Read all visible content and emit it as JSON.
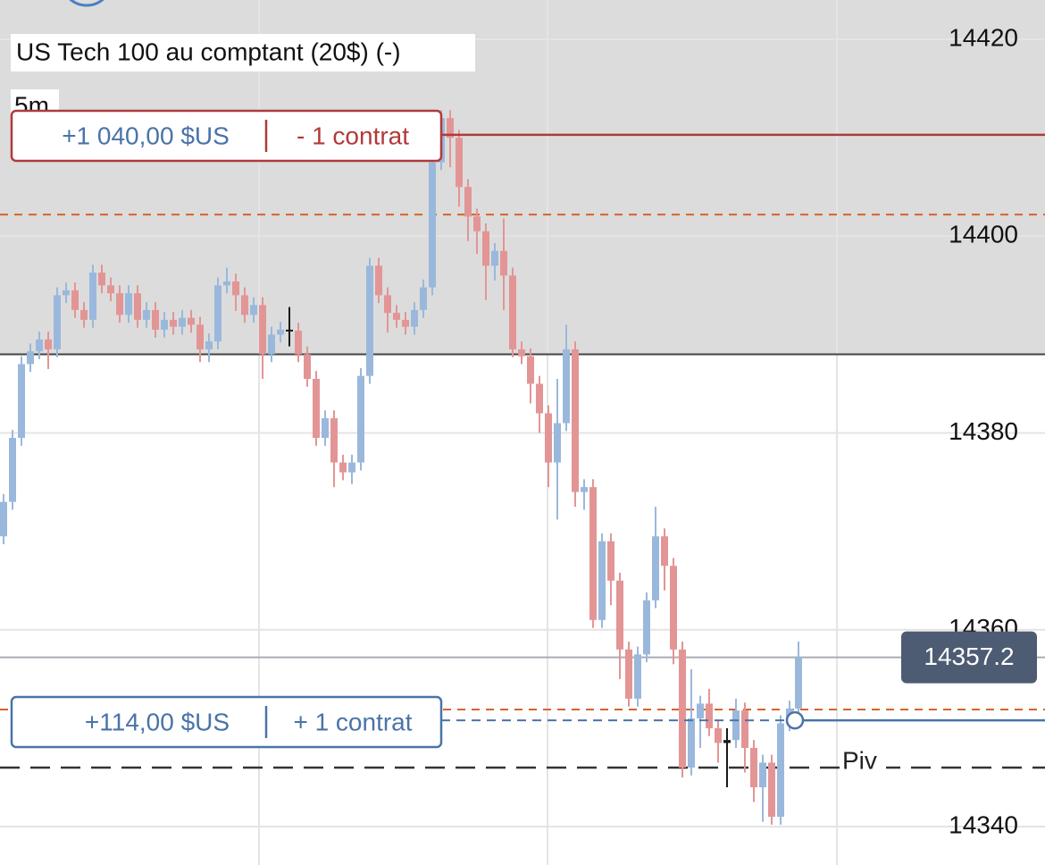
{
  "chart_data": {
    "type": "candlestick",
    "title": "US Tech 100 au comptant (20$) (-)",
    "timeframe": "5m",
    "ylim": [
      14336.1,
      14424.0
    ],
    "yticks": [
      14420,
      14400,
      14380,
      14360,
      14340
    ],
    "grid": true,
    "up_color": "#9ab8dc",
    "down_color": "#e39595",
    "doji_color": "#1a1a1a",
    "shaded_above": 14388.0,
    "open": [
      14369.5,
      14373,
      14379.5,
      14387,
      14388.3,
      14389.5,
      14388.5,
      14394,
      14394.5,
      14392.5,
      14391.5,
      14396.3,
      14395,
      14394.2,
      14392,
      14394.2,
      14391.5,
      14392.5,
      14390.5,
      14391.5,
      14390.8,
      14391.7,
      14391,
      14388.5,
      14389.3,
      14395,
      14395.4,
      14394,
      14392,
      14393,
      14388,
      14390,
      14390.5,
      14390.4,
      14388,
      14385.5,
      14379.5,
      14381.5,
      14377,
      14376,
      14377,
      14385.8,
      14397,
      14394,
      14392.2,
      14391.5,
      14390.8,
      14392.5,
      14394.8,
      14407.5,
      14412,
      14410,
      14405,
      14402,
      14400.5,
      14397,
      14398.5,
      14396,
      14388.5,
      14387.8,
      14385,
      14382,
      14377,
      14381,
      14388.5,
      14374,
      14374.5,
      14361,
      14369,
      14365,
      14358,
      14353,
      14357.5,
      14363,
      14369.5,
      14366.5,
      14358,
      14346,
      14351,
      14352.5,
      14350,
      14348.5,
      14348.8,
      14351.8,
      14348,
      14344,
      14346.5,
      14341,
      14350.5,
      14352
    ],
    "high": [
      14373.8,
      14380.3,
      14387.8,
      14389.1,
      14390.3,
      14390.3,
      14394.8,
      14395.3,
      14395.3,
      14393.3,
      14397.1,
      14397.1,
      14395.8,
      14395,
      14395,
      14395,
      14393.3,
      14393.3,
      14392.3,
      14392.3,
      14392.5,
      14392.5,
      14391.8,
      14390.1,
      14395.8,
      14396.8,
      14396.2,
      14394.8,
      14393.8,
      14393.8,
      14390.8,
      14391.3,
      14392.8,
      14391.2,
      14388.8,
      14386.3,
      14382.3,
      14382.3,
      14377.8,
      14377.8,
      14386.6,
      14397.8,
      14397.8,
      14394.8,
      14393,
      14392.3,
      14393.3,
      14395.6,
      14408.3,
      14412.8,
      14412.8,
      14410.8,
      14405.8,
      14402.8,
      14401.3,
      14399.3,
      14401.8,
      14396.8,
      14389.3,
      14388.6,
      14385.8,
      14382.8,
      14385.5,
      14391,
      14389.3,
      14375.3,
      14375.3,
      14369.8,
      14369.8,
      14365.8,
      14358.8,
      14358.3,
      14363.8,
      14372.5,
      14370.3,
      14367.3,
      14358.8,
      14356,
      14353.3,
      14354,
      14350.8,
      14350,
      14353,
      14352.6,
      14348.8,
      14347.3,
      14347.3,
      14351.3,
      14352.8,
      14358.8
    ],
    "low": [
      14368.7,
      14372.2,
      14378.7,
      14386.2,
      14387.5,
      14386.5,
      14387.7,
      14393.2,
      14391.7,
      14390.7,
      14390.7,
      14394.2,
      14393.4,
      14391.2,
      14391.2,
      14390.7,
      14390.7,
      14389.7,
      14389.7,
      14390,
      14390,
      14390.2,
      14387.2,
      14387.2,
      14388.5,
      14394.2,
      14392.4,
      14391.2,
      14391.2,
      14385.5,
      14387.2,
      14389.2,
      14388.8,
      14387.2,
      14384.7,
      14378.7,
      14378.7,
      14374.5,
      14375.2,
      14374.8,
      14376.2,
      14385,
      14393.2,
      14390.2,
      14390.7,
      14390,
      14390,
      14391.7,
      14394,
      14406.7,
      14407,
      14403,
      14399.5,
      14398.2,
      14393.5,
      14395.5,
      14392.5,
      14387.7,
      14387,
      14383,
      14380,
      14374.5,
      14371.2,
      14380.2,
      14372.5,
      14372.2,
      14360.2,
      14360.2,
      14362.5,
      14355,
      14352.2,
      14352.2,
      14356.7,
      14362.2,
      14364,
      14356.5,
      14345,
      14345.2,
      14348,
      14349.2,
      14346.5,
      14344,
      14348,
      14345.5,
      14342.5,
      14340.5,
      14340.2,
      14340.2,
      14349.7,
      14351.2
    ],
    "close": [
      14373,
      14379.5,
      14387,
      14388.3,
      14389.5,
      14388.5,
      14394,
      14394.5,
      14392.5,
      14391.5,
      14396.3,
      14395,
      14394.2,
      14392,
      14394.2,
      14391.5,
      14392.5,
      14390.5,
      14391.5,
      14390.8,
      14391.7,
      14391,
      14388.5,
      14389.3,
      14395,
      14395.4,
      14394,
      14392,
      14393,
      14388,
      14390,
      14390.5,
      14390.4,
      14388,
      14385.5,
      14379.5,
      14381.5,
      14377,
      14376,
      14377,
      14385.8,
      14397,
      14394,
      14392.2,
      14391.5,
      14390.8,
      14392.5,
      14394.8,
      14407.5,
      14412,
      14410,
      14405,
      14402,
      14400.5,
      14397,
      14398.5,
      14396,
      14388.5,
      14387.8,
      14385,
      14382,
      14377,
      14381,
      14388.5,
      14374,
      14374.5,
      14361,
      14369,
      14365,
      14358,
      14353,
      14357.5,
      14363,
      14369.5,
      14366.5,
      14358,
      14346,
      14351,
      14352.5,
      14350,
      14348.5,
      14348.8,
      14351.8,
      14348,
      14344,
      14346.5,
      14341,
      14350.5,
      14352,
      14357.2
    ],
    "last_price": 14357.2,
    "last_price_color": "#4d5b73",
    "lines": [
      {
        "value": 14388.0,
        "color": "#444444",
        "dash": false
      },
      {
        "value": 14402.2,
        "color": "#d9622b",
        "dash": true
      },
      {
        "value": 14351.9,
        "color": "#d9622b",
        "dash": true
      }
    ],
    "orders": [
      {
        "value": 14410.3,
        "pnl": "+1 040,00 $US",
        "qty": "- 1 contrat",
        "color": "#b03a3a",
        "pnl_color": "#4a73a8",
        "qty_color": "#b03a3a"
      },
      {
        "value": 14350.8,
        "pnl": "+114,00 $US",
        "qty": "+ 1 contrat",
        "color": "#4a73a8",
        "pnl_color": "#4a73a8",
        "qty_color": "#4a73a8"
      }
    ],
    "pivot": {
      "value": 14346.0,
      "label": "Piv"
    }
  }
}
